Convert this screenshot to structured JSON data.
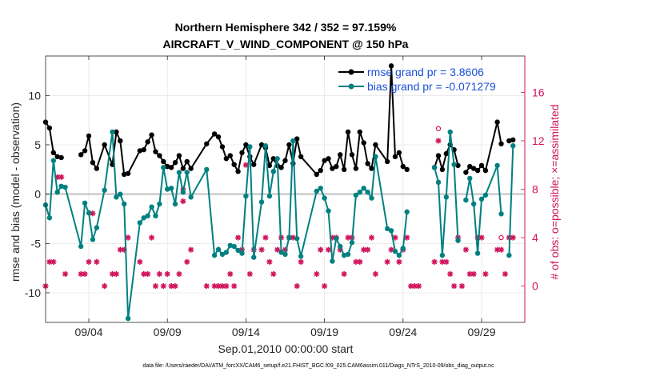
{
  "chart_data": {
    "type": "line",
    "title_line1": "Northern Hemisphere 342 / 352 = 97.159%",
    "title_line2": "AIRCRAFT_V_WIND_COMPONENT @ 150 hPa",
    "xlabel": "Sep.01,2010 00:00:00 start",
    "ylabel_left": "rmse and bias (model - observation)",
    "ylabel_right": "# of obs: o=possible; ×=assimilated",
    "x_unit": "days since Sep.01,2010 00:00",
    "xlim": [
      1.25,
      31.75
    ],
    "ylim_left": [
      -13,
      14
    ],
    "ylim_right": [
      -3,
      19
    ],
    "x_tick_values": [
      4,
      9,
      14,
      19,
      24,
      29
    ],
    "x_tick_labels": [
      "09/04",
      "09/09",
      "09/14",
      "09/19",
      "09/24",
      "09/29"
    ],
    "y_left_ticks": [
      -10,
      -5,
      0,
      5,
      10
    ],
    "y_left_tick_labels": [
      "-10",
      "-5",
      "0",
      "5",
      "10"
    ],
    "y_right_ticks": [
      0,
      4,
      8,
      12,
      16
    ],
    "y_right_tick_labels": [
      "0",
      "4",
      "8",
      "12",
      "16"
    ],
    "grid": true,
    "legend_position": "top-right",
    "colors": {
      "rmse": "#000000",
      "bias": "#008080",
      "obs": "#d1135c",
      "zero_line": "#c0c0c0"
    },
    "legend": [
      {
        "name": "rmse",
        "label": "rmse grand pr = 3.8606"
      },
      {
        "name": "bias",
        "label": "bias grand pr = -0.071279"
      }
    ],
    "rmse": {
      "x": [
        1.25,
        1.5,
        1.75,
        2.0,
        2.25,
        2.5,
        3.5,
        3.75,
        4.0,
        4.25,
        4.5,
        5.0,
        5.5,
        5.75,
        6.0,
        6.25,
        6.5,
        7.25,
        7.5,
        7.75,
        8.0,
        8.25,
        8.5,
        8.75,
        9.0,
        9.25,
        9.5,
        9.75,
        10.0,
        10.25,
        10.5,
        11.5,
        12.0,
        12.25,
        12.5,
        12.75,
        13.0,
        13.25,
        13.5,
        13.75,
        14.0,
        14.25,
        14.5,
        15.0,
        15.25,
        15.5,
        15.75,
        16.0,
        16.25,
        16.5,
        16.75,
        17.0,
        17.25,
        17.5,
        18.5,
        18.75,
        19.0,
        19.25,
        19.5,
        19.75,
        20.0,
        20.25,
        20.5,
        20.75,
        21.0,
        21.25,
        21.5,
        21.75,
        22.0,
        22.25,
        23.0,
        23.25,
        23.5,
        23.75,
        24.0,
        24.25,
        24.5,
        24.75,
        25.0,
        26.0,
        26.25,
        26.5,
        26.75,
        27.0,
        27.25,
        27.5,
        27.75,
        28.0,
        28.25,
        28.5,
        28.75,
        29.0,
        29.25,
        30.0,
        30.25,
        30.5,
        30.75,
        31.0
      ],
      "y": [
        7.3,
        6.7,
        4.2,
        3.8,
        3.7,
        null,
        4.0,
        4.4,
        5.9,
        3.2,
        2.6,
        5.0,
        3.0,
        6.3,
        5.4,
        2.0,
        2.1,
        4.4,
        4.5,
        5.3,
        6.0,
        4.3,
        3.9,
        3.3,
        2.8,
        2.7,
        3.2,
        3.9,
        2.6,
        3.3,
        2.6,
        5.1,
        6.1,
        5.8,
        4.8,
        3.6,
        3.9,
        3.0,
        2.3,
        4.2,
        5.0,
        3.8,
        3.0,
        5.0,
        4.7,
        2.9,
        3.6,
        2.9,
        2.7,
        3.4,
        5.0,
        3.1,
        5.6,
        3.8,
        2.0,
        2.4,
        3.4,
        3.6,
        2.6,
        2.8,
        4.0,
        2.5,
        6.3,
        4.0,
        2.6,
        6.3,
        5.2,
        3.1,
        2.6,
        5.0,
        3.3,
        13.0,
        3.8,
        4.2,
        2.8,
        2.5,
        null,
        null,
        null,
        2.7,
        3.9,
        2.5,
        4.1,
        5.0,
        4.5,
        2.9,
        null,
        2.2,
        2.8,
        2.6,
        2.4,
        2.9,
        2.4,
        7.3,
        5.1,
        null,
        5.4,
        5.5
      ]
    },
    "bias": {
      "x": [
        1.25,
        1.5,
        1.75,
        2.0,
        2.25,
        2.5,
        3.5,
        3.75,
        4.0,
        4.25,
        4.5,
        5.0,
        5.5,
        5.75,
        6.0,
        6.25,
        6.5,
        7.25,
        7.5,
        7.75,
        8.0,
        8.25,
        8.5,
        8.75,
        9.0,
        9.25,
        9.5,
        9.75,
        10.0,
        10.25,
        10.5,
        11.5,
        12.0,
        12.25,
        12.5,
        12.75,
        13.0,
        13.25,
        13.5,
        13.75,
        14.0,
        14.25,
        14.5,
        15.0,
        15.25,
        15.5,
        15.75,
        16.0,
        16.25,
        16.5,
        16.75,
        17.0,
        17.25,
        17.5,
        18.5,
        18.75,
        19.0,
        19.25,
        19.5,
        19.75,
        20.0,
        20.25,
        20.5,
        20.75,
        21.0,
        21.25,
        21.5,
        21.75,
        22.0,
        22.25,
        23.0,
        23.25,
        23.5,
        23.75,
        24.0,
        24.25,
        24.5,
        24.75,
        25.0,
        26.0,
        26.25,
        26.5,
        26.75,
        27.0,
        27.25,
        27.5,
        27.75,
        28.0,
        28.25,
        28.5,
        28.75,
        29.0,
        29.25,
        30.0,
        30.25,
        30.5,
        30.75,
        31.0
      ],
      "y": [
        -1.1,
        -2.4,
        3.4,
        0.2,
        0.8,
        0.7,
        -5.3,
        -0.9,
        -1.9,
        -4.6,
        -3.4,
        0.4,
        6.3,
        -0.3,
        0.0,
        -1.0,
        -12.6,
        -2.9,
        -2.4,
        -2.2,
        -1.3,
        -2.2,
        -1.0,
        2.7,
        0.5,
        0.6,
        -1.0,
        2.2,
        0.2,
        2.2,
        -0.3,
        2.5,
        -6.2,
        -5.6,
        -6.1,
        -5.9,
        -5.2,
        -5.3,
        -5.7,
        -6.0,
        -0.2,
        4.8,
        -6.4,
        -0.8,
        4.9,
        -0.2,
        2.3,
        3.6,
        -5.9,
        -6.1,
        -4.4,
        5.4,
        -4.5,
        -6.3,
        0.3,
        0.6,
        -0.4,
        -1.7,
        -6.8,
        -4.5,
        -5.3,
        -6.2,
        -6.1,
        -4.9,
        -0.1,
        0.2,
        0.6,
        0.2,
        -0.4,
        3.8,
        -3.5,
        -3.7,
        -5.8,
        -6.2,
        -5.5,
        -1.8,
        null,
        null,
        null,
        2.7,
        1.2,
        -6.2,
        -0.3,
        6.3,
        3.0,
        -4.7,
        null,
        -0.6,
        1.6,
        -1.0,
        -6.0,
        -0.5,
        -0.1,
        2.9,
        -2.0,
        null,
        -6.2,
        4.9
      ]
    },
    "obs_possible": {
      "x": [
        1.25,
        1.5,
        1.75,
        2.0,
        2.25,
        2.5,
        3.5,
        3.75,
        4.0,
        4.25,
        4.5,
        5.0,
        5.5,
        5.75,
        6.0,
        6.25,
        6.5,
        7.25,
        7.5,
        7.75,
        8.0,
        8.25,
        8.5,
        8.75,
        9.0,
        9.25,
        9.5,
        9.75,
        10.0,
        10.25,
        10.5,
        11.5,
        12.0,
        12.25,
        12.5,
        12.75,
        13.0,
        13.25,
        13.5,
        13.75,
        14.0,
        14.25,
        14.5,
        15.0,
        15.25,
        15.5,
        15.75,
        16.0,
        16.25,
        16.5,
        16.75,
        17.0,
        17.25,
        17.5,
        18.5,
        18.75,
        19.0,
        19.25,
        19.5,
        19.75,
        20.0,
        20.25,
        20.5,
        20.75,
        21.0,
        21.25,
        21.5,
        21.75,
        22.0,
        22.25,
        23.0,
        23.25,
        23.5,
        23.75,
        24.0,
        24.25,
        24.5,
        24.75,
        25.0,
        26.0,
        26.25,
        26.5,
        26.75,
        27.0,
        27.25,
        27.5,
        27.75,
        28.0,
        28.25,
        28.5,
        28.75,
        29.0,
        29.25,
        30.0,
        30.25,
        30.5,
        30.75,
        31.0
      ],
      "y": [
        0,
        2,
        2,
        9,
        9,
        1,
        1,
        1,
        2,
        6,
        2,
        0,
        1,
        1,
        3,
        3,
        4,
        2,
        1,
        1,
        4,
        0,
        1,
        0,
        1,
        0,
        0,
        1,
        8,
        2,
        3,
        0,
        0,
        0,
        0,
        0,
        1,
        0,
        4,
        3,
        10,
        1,
        3,
        3,
        4,
        2,
        1,
        3,
        4,
        3,
        4,
        4,
        0,
        2,
        1,
        3,
        0,
        3,
        4,
        4,
        3,
        1,
        4,
        4,
        2,
        2,
        3,
        3,
        4,
        1,
        2,
        3,
        4,
        2,
        3,
        4,
        0,
        0,
        0,
        2,
        13,
        2,
        2,
        1,
        0,
        4,
        0,
        3,
        1,
        1,
        4,
        4,
        1,
        3,
        4,
        1,
        4,
        4
      ]
    },
    "obs_assimilated": {
      "x": [
        1.25,
        1.5,
        1.75,
        2.0,
        2.25,
        2.5,
        3.5,
        3.75,
        4.0,
        4.25,
        4.5,
        5.0,
        5.5,
        5.75,
        6.0,
        6.25,
        6.5,
        7.25,
        7.5,
        7.75,
        8.0,
        8.25,
        8.5,
        8.75,
        9.0,
        9.25,
        9.5,
        9.75,
        10.0,
        10.25,
        10.5,
        11.5,
        12.0,
        12.25,
        12.5,
        12.75,
        13.0,
        13.25,
        13.5,
        13.75,
        14.0,
        14.25,
        14.5,
        15.0,
        15.25,
        15.5,
        15.75,
        16.0,
        16.25,
        16.5,
        16.75,
        17.0,
        17.25,
        17.5,
        18.5,
        18.75,
        19.0,
        19.25,
        19.5,
        19.75,
        20.0,
        20.25,
        20.5,
        20.75,
        21.0,
        21.25,
        21.5,
        21.75,
        22.0,
        22.25,
        23.0,
        23.25,
        23.5,
        23.75,
        24.0,
        24.25,
        24.5,
        24.75,
        25.0,
        26.0,
        26.25,
        26.5,
        26.75,
        27.0,
        27.25,
        27.5,
        27.75,
        28.0,
        28.25,
        28.5,
        28.75,
        29.0,
        29.25,
        30.0,
        30.25,
        30.5,
        30.75,
        31.0
      ],
      "y": [
        0,
        2,
        2,
        9,
        9,
        1,
        1,
        1,
        2,
        6,
        2,
        0,
        1,
        1,
        3,
        3,
        4,
        2,
        1,
        1,
        4,
        0,
        1,
        0,
        1,
        0,
        0,
        1,
        7,
        2,
        3,
        0,
        0,
        0,
        0,
        0,
        1,
        0,
        4,
        3,
        10,
        1,
        3,
        3,
        4,
        2,
        1,
        3,
        4,
        3,
        4,
        4,
        0,
        2,
        1,
        3,
        0,
        3,
        4,
        4,
        3,
        1,
        4,
        4,
        2,
        2,
        3,
        3,
        4,
        1,
        2,
        3,
        4,
        2,
        3,
        4,
        0,
        0,
        0,
        2,
        12,
        2,
        2,
        1,
        0,
        4,
        0,
        3,
        1,
        1,
        4,
        4,
        1,
        3,
        3,
        1,
        4,
        4
      ]
    }
  },
  "footer": "data file: /Users/raeder/DAI/ATM_forcXX/CAM6_setup/f.e21.FHIST_BGC.f09_025.CAM6assim.011/Diags_NTrS_2010-09/obs_diag_output.nc"
}
